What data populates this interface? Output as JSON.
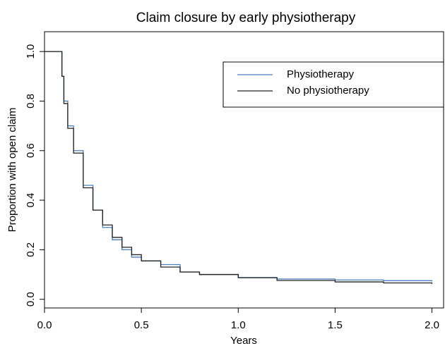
{
  "chart_data": {
    "type": "line",
    "step": true,
    "title": "Claim closure by early physiotherapy",
    "x_label": "Years",
    "y_label": "Proportion with open claim",
    "x": [
      0,
      0.08,
      0.09,
      0.1,
      0.12,
      0.15,
      0.2,
      0.25,
      0.3,
      0.35,
      0.4,
      0.45,
      0.5,
      0.6,
      0.7,
      0.8,
      1.0,
      1.2,
      1.5,
      1.75,
      2.0
    ],
    "series": [
      {
        "name": "Physiotherapy",
        "color": "#4a7ebb",
        "values": [
          1.0,
          1.0,
          0.9,
          0.8,
          0.7,
          0.6,
          0.46,
          0.36,
          0.29,
          0.24,
          0.2,
          0.17,
          0.155,
          0.14,
          0.11,
          0.1,
          0.088,
          0.082,
          0.078,
          0.075,
          0.072
        ]
      },
      {
        "name": "No physiotherapy",
        "color": "#222222",
        "values": [
          1.0,
          1.0,
          0.9,
          0.79,
          0.69,
          0.59,
          0.45,
          0.36,
          0.3,
          0.25,
          0.21,
          0.18,
          0.155,
          0.13,
          0.11,
          0.1,
          0.087,
          0.076,
          0.07,
          0.066,
          0.062
        ]
      }
    ],
    "xlim": [
      0,
      2.06
    ],
    "ylim": [
      -0.035,
      1.08
    ],
    "xticks": [
      {
        "value": 0,
        "label": "0.0"
      },
      {
        "value": 0.5,
        "label": "0.5"
      },
      {
        "value": 1,
        "label": "1.0"
      },
      {
        "value": 1.5,
        "label": "1.5"
      },
      {
        "value": 2,
        "label": "2.0"
      }
    ],
    "yticks": [
      {
        "value": 0,
        "label": "0.0"
      },
      {
        "value": 0.2,
        "label": "0.2"
      },
      {
        "value": 0.4,
        "label": "0.4"
      },
      {
        "value": 0.6,
        "label": "0.6"
      },
      {
        "value": 0.8,
        "label": "0.8"
      },
      {
        "value": 1,
        "label": "1.0"
      }
    ],
    "legend": "top-right",
    "grid": false
  }
}
